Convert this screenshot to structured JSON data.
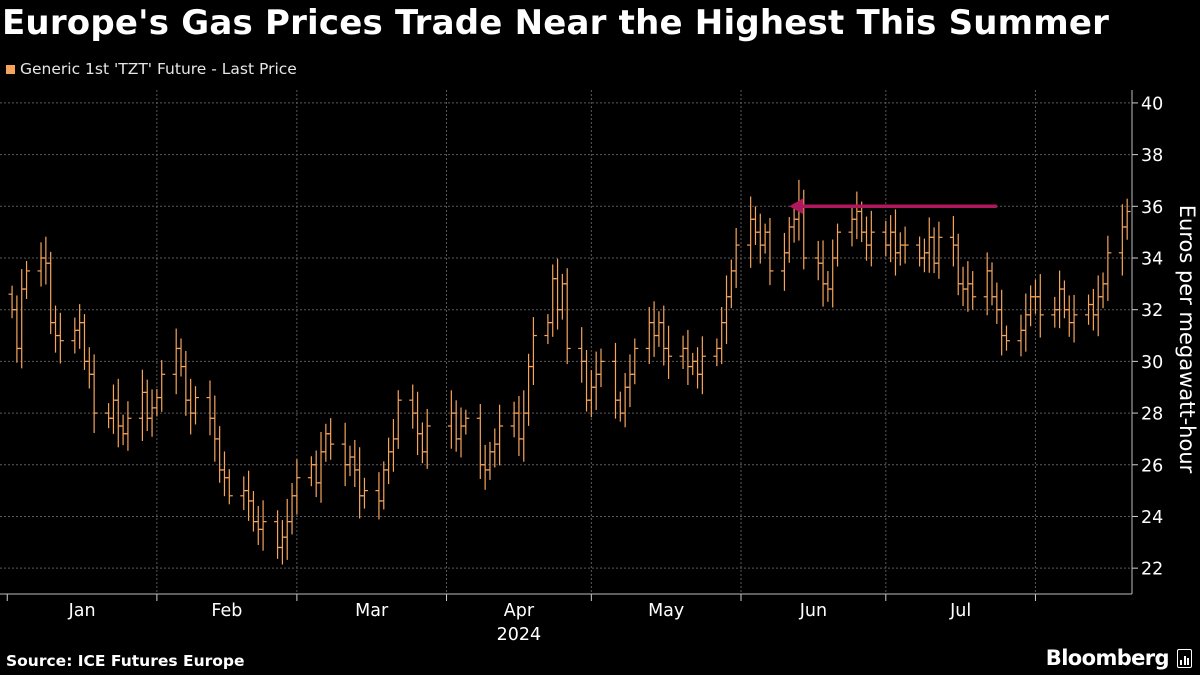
{
  "title": "Europe's Gas Prices Trade Near the Highest This Summer",
  "legend": {
    "label": "Generic 1st 'TZT' Future - Last Price",
    "color": "#f6a45a"
  },
  "source": "Source: ICE Futures Europe",
  "brand": {
    "name": "Bloomberg",
    "icon": "bloomberg-terminal-icon"
  },
  "chart_data": {
    "type": "ohlc",
    "ylabel": "Euros per megawatt-hour",
    "ylim": [
      21,
      40.5
    ],
    "yticks": [
      22,
      24,
      26,
      28,
      30,
      32,
      34,
      36,
      38,
      40
    ],
    "xlabel": "2024",
    "month_labels": [
      "Jan",
      "Feb",
      "Mar",
      "Apr",
      "May",
      "Jun",
      "Jul"
    ],
    "grid": true,
    "colors": {
      "bars": "#f6a45a",
      "grid": "#5a5a5a",
      "arrow": "#b0185e"
    },
    "annotation": {
      "type": "arrow",
      "from_date": "2024-07-24",
      "to_date": "2024-06-11",
      "value": 36.0
    },
    "series": [
      {
        "name": "Generic 1st 'TZT' Future - Last Price",
        "closes": [
          [
            "2024-01-02",
            32.0
          ],
          [
            "2024-01-03",
            30.5
          ],
          [
            "2024-01-04",
            32.8
          ],
          [
            "2024-01-05",
            33.5
          ],
          [
            "2024-01-08",
            34.0
          ],
          [
            "2024-01-09",
            33.8
          ],
          [
            "2024-01-10",
            31.5
          ],
          [
            "2024-01-11",
            31.0
          ],
          [
            "2024-01-12",
            30.8
          ],
          [
            "2024-01-15",
            31.2
          ],
          [
            "2024-01-16",
            31.5
          ],
          [
            "2024-01-17",
            30.0
          ],
          [
            "2024-01-18",
            29.5
          ],
          [
            "2024-01-19",
            28.0
          ],
          [
            "2024-01-22",
            27.8
          ],
          [
            "2024-01-23",
            28.5
          ],
          [
            "2024-01-24",
            27.5
          ],
          [
            "2024-01-25",
            27.2
          ],
          [
            "2024-01-26",
            27.8
          ],
          [
            "2024-01-29",
            28.8
          ],
          [
            "2024-01-30",
            27.8
          ],
          [
            "2024-01-31",
            28.2
          ],
          [
            "2024-02-01",
            28.6
          ],
          [
            "2024-02-02",
            29.5
          ],
          [
            "2024-02-05",
            30.5
          ],
          [
            "2024-02-06",
            29.8
          ],
          [
            "2024-02-07",
            28.5
          ],
          [
            "2024-02-08",
            28.0
          ],
          [
            "2024-02-09",
            28.6
          ],
          [
            "2024-02-12",
            27.8
          ],
          [
            "2024-02-13",
            27.0
          ],
          [
            "2024-02-14",
            25.8
          ],
          [
            "2024-02-15",
            25.5
          ],
          [
            "2024-02-16",
            24.8
          ],
          [
            "2024-02-19",
            25.0
          ],
          [
            "2024-02-20",
            24.6
          ],
          [
            "2024-02-21",
            23.8
          ],
          [
            "2024-02-22",
            23.5
          ],
          [
            "2024-02-23",
            23.8
          ],
          [
            "2024-02-26",
            22.8
          ],
          [
            "2024-02-27",
            23.2
          ],
          [
            "2024-02-28",
            23.8
          ],
          [
            "2024-02-29",
            24.8
          ],
          [
            "2024-03-01",
            25.5
          ],
          [
            "2024-03-04",
            26.0
          ],
          [
            "2024-03-05",
            25.3
          ],
          [
            "2024-03-06",
            26.5
          ],
          [
            "2024-03-07",
            27.2
          ],
          [
            "2024-03-08",
            26.8
          ],
          [
            "2024-03-11",
            26.0
          ],
          [
            "2024-03-12",
            26.3
          ],
          [
            "2024-03-13",
            25.8
          ],
          [
            "2024-03-14",
            24.8
          ],
          [
            "2024-03-15",
            25.0
          ],
          [
            "2024-03-18",
            24.6
          ],
          [
            "2024-03-19",
            25.8
          ],
          [
            "2024-03-20",
            26.5
          ],
          [
            "2024-03-21",
            27.0
          ],
          [
            "2024-03-22",
            28.5
          ],
          [
            "2024-03-25",
            28.0
          ],
          [
            "2024-03-26",
            27.2
          ],
          [
            "2024-03-27",
            26.5
          ],
          [
            "2024-03-28",
            27.5
          ],
          [
            "2024-04-02",
            28.0
          ],
          [
            "2024-04-03",
            27.0
          ],
          [
            "2024-04-04",
            27.5
          ],
          [
            "2024-04-05",
            27.8
          ],
          [
            "2024-04-08",
            26.0
          ],
          [
            "2024-04-09",
            25.8
          ],
          [
            "2024-04-10",
            26.5
          ],
          [
            "2024-04-11",
            26.8
          ],
          [
            "2024-04-12",
            27.5
          ],
          [
            "2024-04-15",
            28.0
          ],
          [
            "2024-04-16",
            27.0
          ],
          [
            "2024-04-17",
            28.0
          ],
          [
            "2024-04-18",
            29.8
          ],
          [
            "2024-04-19",
            31.0
          ],
          [
            "2024-04-22",
            31.5
          ],
          [
            "2024-04-23",
            33.2
          ],
          [
            "2024-04-24",
            32.0
          ],
          [
            "2024-04-25",
            33.0
          ],
          [
            "2024-04-26",
            30.5
          ],
          [
            "2024-04-29",
            30.0
          ],
          [
            "2024-04-30",
            28.5
          ],
          [
            "2024-05-01",
            29.0
          ],
          [
            "2024-05-02",
            29.5
          ],
          [
            "2024-05-03",
            30.0
          ],
          [
            "2024-05-06",
            28.5
          ],
          [
            "2024-05-07",
            28.0
          ],
          [
            "2024-05-08",
            29.0
          ],
          [
            "2024-05-09",
            29.5
          ],
          [
            "2024-05-10",
            30.5
          ],
          [
            "2024-05-13",
            31.5
          ],
          [
            "2024-05-14",
            31.0
          ],
          [
            "2024-05-15",
            31.5
          ],
          [
            "2024-05-16",
            30.5
          ],
          [
            "2024-05-17",
            30.2
          ],
          [
            "2024-05-20",
            30.5
          ],
          [
            "2024-05-21",
            29.8
          ],
          [
            "2024-05-22",
            30.0
          ],
          [
            "2024-05-23",
            29.5
          ],
          [
            "2024-05-24",
            30.2
          ],
          [
            "2024-05-27",
            30.5
          ],
          [
            "2024-05-28",
            31.5
          ],
          [
            "2024-05-29",
            32.5
          ],
          [
            "2024-05-30",
            33.5
          ],
          [
            "2024-05-31",
            34.5
          ],
          [
            "2024-06-03",
            35.5
          ],
          [
            "2024-06-04",
            35.0
          ],
          [
            "2024-06-05",
            34.5
          ],
          [
            "2024-06-06",
            35.0
          ],
          [
            "2024-06-07",
            33.5
          ],
          [
            "2024-06-10",
            34.2
          ],
          [
            "2024-06-11",
            35.2
          ],
          [
            "2024-06-12",
            35.5
          ],
          [
            "2024-06-13",
            36.2
          ],
          [
            "2024-06-14",
            34.0
          ],
          [
            "2024-06-17",
            33.8
          ],
          [
            "2024-06-18",
            33.0
          ],
          [
            "2024-06-19",
            32.8
          ],
          [
            "2024-06-20",
            34.0
          ],
          [
            "2024-06-21",
            35.0
          ],
          [
            "2024-06-24",
            35.5
          ],
          [
            "2024-06-25",
            35.8
          ],
          [
            "2024-06-26",
            35.0
          ],
          [
            "2024-06-27",
            34.5
          ],
          [
            "2024-06-28",
            35.0
          ],
          [
            "2024-07-01",
            34.5
          ],
          [
            "2024-07-02",
            35.0
          ],
          [
            "2024-07-03",
            34.2
          ],
          [
            "2024-07-04",
            34.5
          ],
          [
            "2024-07-05",
            34.5
          ],
          [
            "2024-07-08",
            34.0
          ],
          [
            "2024-07-09",
            34.2
          ],
          [
            "2024-07-10",
            34.8
          ],
          [
            "2024-07-11",
            33.8
          ],
          [
            "2024-07-12",
            34.8
          ],
          [
            "2024-07-15",
            34.5
          ],
          [
            "2024-07-16",
            33.0
          ],
          [
            "2024-07-17",
            32.8
          ],
          [
            "2024-07-18",
            33.0
          ],
          [
            "2024-07-19",
            32.5
          ],
          [
            "2024-07-22",
            33.5
          ],
          [
            "2024-07-23",
            32.5
          ],
          [
            "2024-07-24",
            32.0
          ],
          [
            "2024-07-25",
            31.0
          ],
          [
            "2024-07-26",
            30.8
          ],
          [
            "2024-07-29",
            31.2
          ],
          [
            "2024-07-30",
            31.8
          ],
          [
            "2024-07-31",
            32.5
          ],
          [
            "2024-08-01",
            32.5
          ],
          [
            "2024-08-02",
            31.8
          ],
          [
            "2024-08-05",
            32.0
          ],
          [
            "2024-08-06",
            32.8
          ],
          [
            "2024-08-07",
            32.0
          ],
          [
            "2024-08-08",
            31.5
          ],
          [
            "2024-08-09",
            31.8
          ],
          [
            "2024-08-12",
            32.2
          ],
          [
            "2024-08-13",
            31.8
          ],
          [
            "2024-08-14",
            32.5
          ],
          [
            "2024-08-15",
            33.0
          ],
          [
            "2024-08-16",
            34.2
          ],
          [
            "2024-08-19",
            35.2
          ],
          [
            "2024-08-20",
            35.8
          ]
        ]
      }
    ]
  }
}
